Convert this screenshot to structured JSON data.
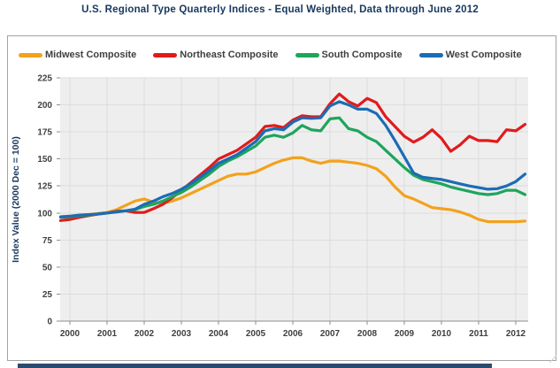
{
  "page": {
    "title": "U.S. Regional Type Quarterly Indices - Equal Weighted, Data through June 2012"
  },
  "colors": {
    "title_navy": "#17375E",
    "tick_label_gray": "#404040",
    "legend_label_gray": "#3F3F3F",
    "plot_background": "#EFEEEE",
    "gridline": "#DCDCDC",
    "axis_line": "#8C8C8C",
    "chart_border": "#A3A3A3",
    "scrollbar_navy": "#2B4A70"
  },
  "chart_data": {
    "type": "line",
    "title": "U.S. Regional Type Quarterly Indices - Equal Weighted, Data through June 2012",
    "xlabel": "",
    "ylabel": "Index Value (2000 Dec = 100)",
    "ylim": [
      0,
      225
    ],
    "y_ticks": [
      0,
      25,
      50,
      75,
      100,
      125,
      150,
      175,
      200,
      225
    ],
    "x_tick_labels": [
      "2000",
      "2001",
      "2002",
      "2003",
      "2004",
      "2005",
      "2006",
      "2007",
      "2008",
      "2009",
      "2010",
      "2011",
      "2012"
    ],
    "x_start": 1999.75,
    "x_step_years": 0.25,
    "x_end": 2012.25,
    "grid": true,
    "legend_position": "top",
    "series": [
      {
        "name": "Midwest Composite",
        "color": "#F2A21C",
        "values": [
          96.5,
          97,
          98,
          98.5,
          99.5,
          100.5,
          103,
          107,
          111,
          113,
          110,
          109,
          111,
          114,
          118,
          122,
          126,
          130,
          134,
          136,
          136,
          138,
          142,
          146,
          149,
          151,
          151,
          148,
          146,
          148,
          148,
          147,
          146,
          144,
          141,
          134,
          124,
          116,
          113,
          109,
          105,
          104,
          103,
          101,
          98,
          94,
          92,
          92,
          92,
          92,
          92.5
        ]
      },
      {
        "name": "Northeast Composite",
        "color": "#E01B1C",
        "values": [
          93,
          94,
          96,
          97.5,
          99,
          100,
          101.5,
          102,
          100.5,
          100.5,
          104,
          108,
          114,
          121,
          128,
          135,
          142,
          150,
          154,
          158,
          164,
          170,
          180,
          181,
          179,
          186,
          190,
          189,
          189,
          201,
          210,
          203,
          199,
          206,
          202,
          189,
          180,
          171,
          165.5,
          170,
          177,
          169,
          157,
          163,
          171,
          167,
          167,
          166,
          177,
          176,
          182
        ]
      },
      {
        "name": "South Composite",
        "color": "#1EA55C",
        "values": [
          96,
          96.5,
          97.5,
          98,
          99,
          100,
          101,
          102,
          103,
          106,
          108,
          111,
          115,
          119,
          124,
          130,
          136,
          143,
          148,
          152,
          157,
          162,
          170,
          172,
          170,
          174,
          181,
          177,
          176,
          187,
          188,
          178,
          176,
          170,
          166,
          158,
          150,
          142,
          135,
          131,
          129,
          127,
          124,
          122,
          120,
          118,
          117,
          118,
          121,
          121,
          117
        ]
      },
      {
        "name": "West Composite",
        "color": "#1B6CB5",
        "values": [
          96.5,
          97,
          98,
          98.5,
          99,
          100,
          101,
          102,
          103.5,
          108,
          111,
          115,
          118,
          122,
          127,
          133,
          139,
          146,
          150,
          154,
          160,
          166,
          176,
          178,
          177,
          184,
          188,
          187.5,
          188,
          199,
          203,
          200,
          196,
          196,
          192,
          181,
          167,
          152,
          137,
          133,
          132,
          131,
          129,
          127,
          125,
          123.5,
          122,
          122.5,
          125,
          129,
          136
        ]
      }
    ]
  }
}
